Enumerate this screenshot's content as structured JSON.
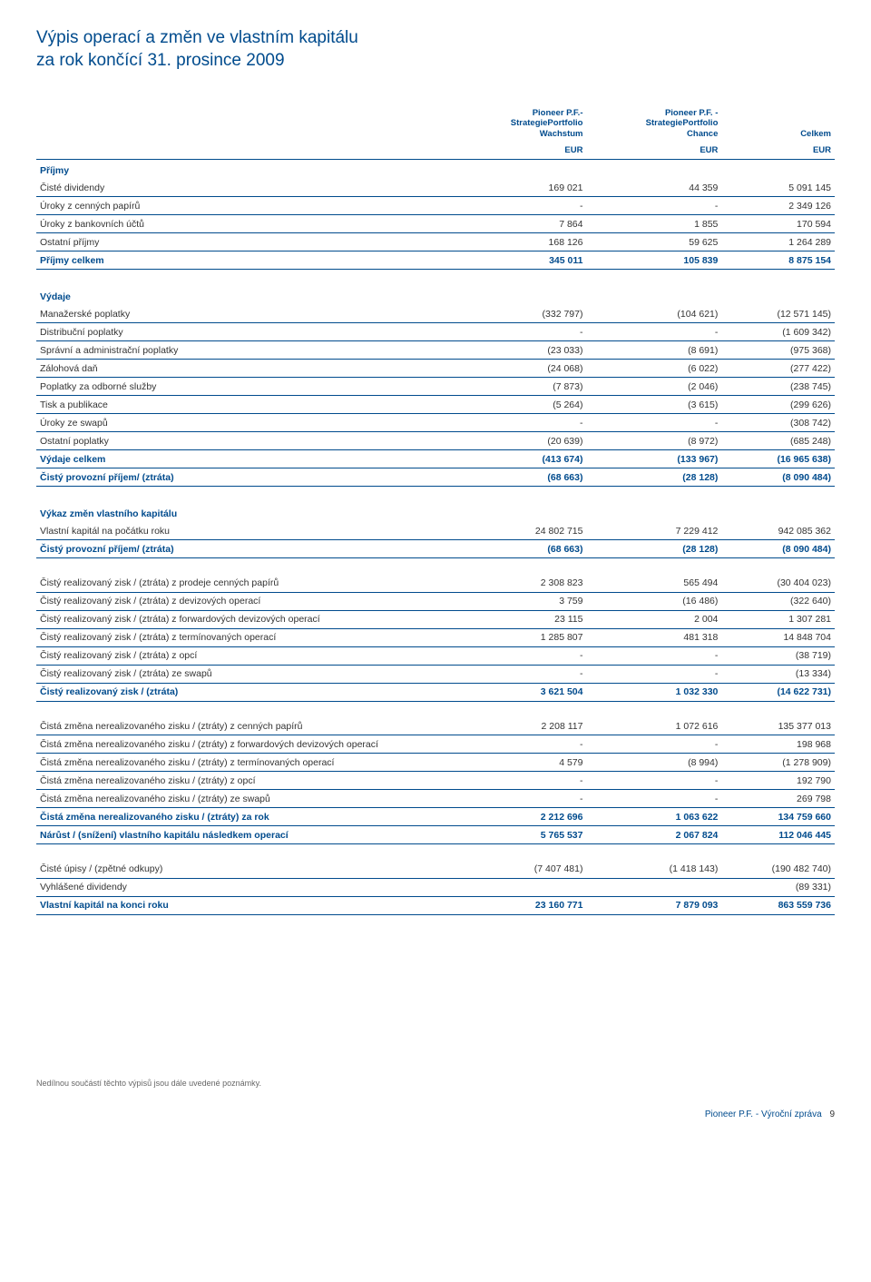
{
  "title_line1": "Výpis operací a změn ve vlastním kapitálu",
  "title_line2": "za rok končící 31. prosince 2009",
  "headers": {
    "col1": "Pioneer P.F.-\nStrategiePortfolio\nWachstum",
    "col2": "Pioneer P.F. -\nStrategiePortfolio\nChance",
    "col3": "Celkem",
    "unit": "EUR"
  },
  "sections": {
    "prijmy": {
      "head": "Příjmy",
      "rows": [
        [
          "Čisté dividendy",
          "169 021",
          "44 359",
          "5 091 145"
        ],
        [
          "Úroky z cenných papírů",
          "-",
          "-",
          "2 349 126"
        ],
        [
          "Úroky z bankovních účtů",
          "7 864",
          "1 855",
          "170 594"
        ],
        [
          "Ostatní příjmy",
          "168 126",
          "59 625",
          "1 264 289"
        ]
      ],
      "total": [
        "Příjmy celkem",
        "345 011",
        "105 839",
        "8 875 154"
      ]
    },
    "vydaje": {
      "head": "Výdaje",
      "rows": [
        [
          "Manažerské poplatky",
          "(332 797)",
          "(104 621)",
          "(12 571 145)"
        ],
        [
          "Distribuční poplatky",
          "-",
          "-",
          "(1 609 342)"
        ],
        [
          "Správní a administrační poplatky",
          "(23 033)",
          "(8 691)",
          "(975 368)"
        ],
        [
          "Zálohová daň",
          "(24 068)",
          "(6 022)",
          "(277 422)"
        ],
        [
          "Poplatky za odborné služby",
          "(7 873)",
          "(2 046)",
          "(238 745)"
        ],
        [
          "Tisk a publikace",
          "(5 264)",
          "(3 615)",
          "(299 626)"
        ],
        [
          "Úroky ze swapů",
          "-",
          "-",
          "(308 742)"
        ],
        [
          "Ostatní poplatky",
          "(20 639)",
          "(8 972)",
          "(685 248)"
        ]
      ],
      "total": [
        "Výdaje celkem",
        "(413 674)",
        "(133 967)",
        "(16 965 638)"
      ],
      "net": [
        "Čistý provozní příjem/ (ztráta)",
        "(68 663)",
        "(28 128)",
        "(8 090 484)"
      ]
    },
    "vykaz": {
      "head": "Výkaz změn vlastního kapitálu",
      "rows": [
        [
          "Vlastní kapitál na počátku roku",
          "24 802 715",
          "7 229 412",
          "942 085 362"
        ]
      ],
      "net": [
        "Čistý provozní příjem/ (ztráta)",
        "(68 663)",
        "(28 128)",
        "(8 090 484)"
      ]
    },
    "realizovany": {
      "rows": [
        [
          "Čistý realizovaný zisk / (ztráta) z prodeje cenných papírů",
          "2 308 823",
          "565 494",
          "(30 404 023)"
        ],
        [
          "Čistý realizovaný zisk / (ztráta) z devizových operací",
          "3 759",
          "(16 486)",
          "(322 640)"
        ],
        [
          "Čistý realizovaný zisk / (ztráta) z forwardových devizových operací",
          "23 115",
          "2 004",
          "1 307 281"
        ],
        [
          "Čistý realizovaný zisk / (ztráta) z termínovaných operací",
          "1 285 807",
          "481 318",
          "14 848 704"
        ],
        [
          "Čistý realizovaný zisk / (ztráta) z opcí",
          "-",
          "-",
          "(38 719)"
        ],
        [
          "Čistý realizovaný zisk / (ztráta) ze swapů",
          "-",
          "-",
          "(13 334)"
        ]
      ],
      "total": [
        "Čistý realizovaný zisk / (ztráta)",
        "3 621 504",
        "1 032 330",
        "(14 622 731)"
      ]
    },
    "nerealizovany": {
      "rows": [
        [
          "Čistá změna nerealizovaného zisku / (ztráty) z cenných papírů",
          "2 208 117",
          "1 072 616",
          "135 377 013"
        ],
        [
          "Čistá změna nerealizovaného zisku / (ztráty) z forwardových devizových operací",
          "-",
          "-",
          "198 968"
        ],
        [
          "Čistá změna nerealizovaného zisku / (ztráty) z termínovaných operací",
          "4 579",
          "(8 994)",
          "(1 278 909)"
        ],
        [
          "Čistá změna nerealizovaného zisku / (ztráty) z opcí",
          "-",
          "-",
          "192 790"
        ],
        [
          "Čistá změna nerealizovaného zisku / (ztráty) ze swapů",
          "-",
          "-",
          "269 798"
        ]
      ],
      "total": [
        "Čistá změna nerealizovaného zisku / (ztráty) za rok",
        "2 212 696",
        "1 063 622",
        "134 759 660"
      ],
      "narust": [
        "Nárůst / (snížení) vlastního kapitálu následkem operací",
        "5 765 537",
        "2 067 824",
        "112 046 445"
      ]
    },
    "final": {
      "rows": [
        [
          "Čisté úpisy / (zpětné odkupy)",
          "(7 407 481)",
          "(1 418 143)",
          "(190 482 740)"
        ],
        [
          "Vyhlášené dividendy",
          "",
          "",
          "(89 331)"
        ]
      ],
      "total": [
        "Vlastní kapitál na konci roku",
        "23 160 771",
        "7 879 093",
        "863 559 736"
      ]
    }
  },
  "footnote": "Nedílnou součástí těchto výpisů jsou dále uvedené poznámky.",
  "footer": "Pioneer P.F. - Výroční zpráva",
  "page": "9"
}
